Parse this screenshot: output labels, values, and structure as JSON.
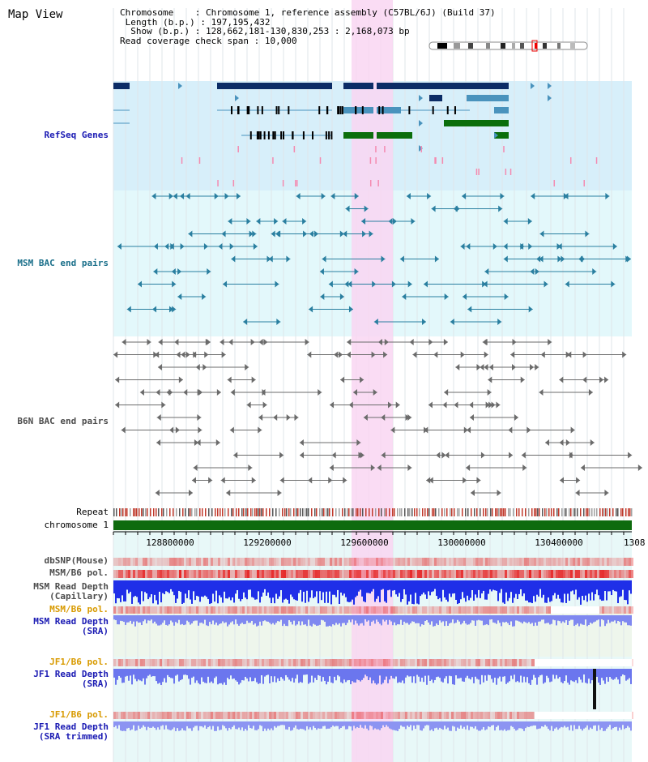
{
  "title": "Map View",
  "info": {
    "chromosome_key": "Chromosome",
    "chromosome_value": "Chromosome 1, reference assembly (C57BL/6J) (Build 37)",
    "length_key": "Length (b.p.)",
    "length_value": "197,195,432",
    "show_key": "Show (b.p.)",
    "show_value": "128,662,181-130,830,253 : 2,168,073 bp",
    "coverage_key": "Read coverage check span",
    "coverage_value": "10,000"
  },
  "tracks": {
    "refseq": "RefSeq Genes",
    "msm_bac": "MSM BAC end pairs",
    "b6n_bac": "B6N BAC end pairs",
    "repeat": "Repeat",
    "chromosome": "chromosome 1",
    "dbsnp": "dbSNP(Mouse)",
    "msm_b6_pol_1": "MSM/B6 pol.",
    "msm_depth_cap_1": "MSM Read Depth",
    "msm_depth_cap_2": "(Capillary)",
    "msm_b6_pol_2": "MSM/B6 pol.",
    "msm_depth_sra_1": "MSM Read Depth",
    "msm_depth_sra_2": "(SRA)",
    "jf1_b6_pol_1": "JF1/B6 pol.",
    "jf1_depth_sra_1": "JF1 Read Depth",
    "jf1_depth_sra_2": "(SRA)",
    "jf1_b6_pol_2": "JF1/B6 pol.",
    "jf1_depth_trim_1": "JF1 Read Depth",
    "jf1_depth_trim_2": "(SRA trimmed)"
  },
  "axis": {
    "ticks": [
      "128800000",
      "129200000",
      "129600000",
      "130000000",
      "130400000",
      "1308"
    ]
  },
  "colors": {
    "refseq_bg": "#d7effa",
    "msm_bg": "#e3f8fb",
    "highlight": "#f9d6f2",
    "gene_dark": "#0b2c66",
    "gene_mid": "#4a93bd",
    "gene_green": "#0b6e0b",
    "chromosome_bar": "#0e6b0e",
    "label_blue": "#1a1ab3",
    "label_orange": "#d89a00",
    "label_teal": "#1a6f8a",
    "label_gray": "#4c4c4c"
  },
  "icons": [
    "chromosome-ideogram-icon"
  ]
}
